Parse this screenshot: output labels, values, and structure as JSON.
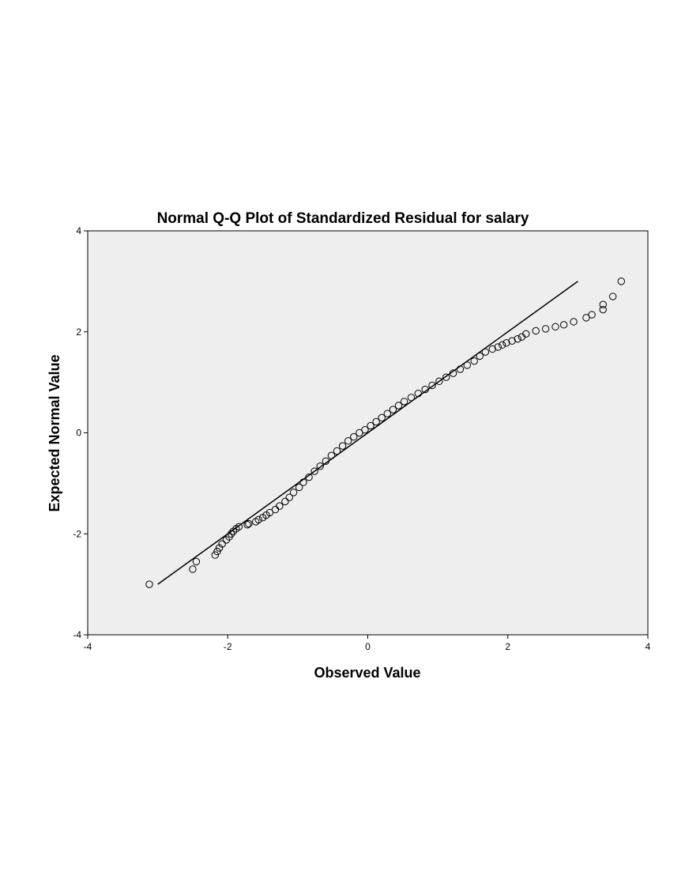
{
  "chart_data": {
    "type": "scatter",
    "title": "Normal Q-Q Plot of Standardized Residual for salary",
    "xlabel": "Observed Value",
    "ylabel": "Expected Normal Value",
    "xlim": [
      -4,
      4
    ],
    "ylim": [
      -4,
      4
    ],
    "xticks": [
      -4,
      -2,
      0,
      2,
      4
    ],
    "yticks": [
      -4,
      -2,
      0,
      2,
      4
    ],
    "xtick_labels": [
      "-4",
      "-2",
      "0",
      "2",
      "4"
    ],
    "ytick_labels": [
      "-4",
      "-2",
      "0",
      "2",
      "4"
    ],
    "grid": false,
    "legend": "none",
    "colors": {
      "plot_background": "#eeeeee",
      "marker_stroke": "#000000",
      "line": "#000000"
    },
    "reference_line": {
      "x": [
        -3.0,
        3.0
      ],
      "y": [
        -3.0,
        3.0
      ]
    },
    "series": [
      {
        "x": [
          -3.12,
          -2.5,
          -2.45,
          -2.18,
          -2.15,
          -2.12,
          -2.08,
          -2.02,
          -1.98,
          -1.95,
          -1.92,
          -1.88,
          -1.84,
          -1.72,
          -1.7,
          -1.6,
          -1.56,
          -1.5,
          -1.45,
          -1.4,
          -1.32,
          -1.26,
          -1.18,
          -1.12,
          -1.06,
          -0.98,
          -0.92,
          -0.84,
          -0.76,
          -0.68,
          -0.6,
          -0.52,
          -0.44,
          -0.36,
          -0.28,
          -0.2,
          -0.12,
          -0.04,
          0.04,
          0.12,
          0.2,
          0.28,
          0.36,
          0.44,
          0.52,
          0.62,
          0.72,
          0.82,
          0.92,
          1.02,
          1.12,
          1.22,
          1.32,
          1.42,
          1.52,
          1.6,
          1.68,
          1.78,
          1.86,
          1.92,
          1.98,
          2.06,
          2.14,
          2.2,
          2.26,
          2.4,
          2.54,
          2.68,
          2.8,
          2.94,
          3.12,
          3.2,
          3.36,
          3.36,
          3.5,
          3.62
        ],
        "y": [
          -3.0,
          -2.7,
          -2.55,
          -2.42,
          -2.35,
          -2.28,
          -2.2,
          -2.12,
          -2.06,
          -2.0,
          -1.95,
          -1.9,
          -1.86,
          -1.82,
          -1.8,
          -1.76,
          -1.72,
          -1.68,
          -1.63,
          -1.58,
          -1.52,
          -1.45,
          -1.36,
          -1.28,
          -1.18,
          -1.08,
          -0.98,
          -0.88,
          -0.76,
          -0.66,
          -0.56,
          -0.45,
          -0.36,
          -0.26,
          -0.16,
          -0.08,
          0.0,
          0.06,
          0.14,
          0.22,
          0.3,
          0.38,
          0.46,
          0.54,
          0.62,
          0.7,
          0.78,
          0.86,
          0.94,
          1.02,
          1.1,
          1.18,
          1.26,
          1.34,
          1.42,
          1.52,
          1.6,
          1.66,
          1.7,
          1.74,
          1.78,
          1.82,
          1.86,
          1.9,
          1.96,
          2.02,
          2.06,
          2.1,
          2.14,
          2.2,
          2.28,
          2.34,
          2.44,
          2.54,
          2.7,
          3.0
        ]
      }
    ]
  }
}
